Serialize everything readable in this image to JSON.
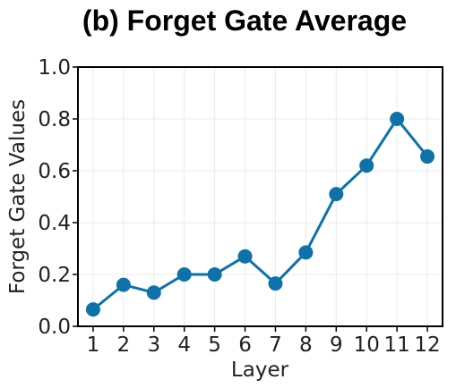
{
  "chart_data": {
    "type": "line",
    "title": "(b) Forget Gate Average",
    "xlabel": "Layer",
    "ylabel": "Forget Gate Values",
    "x": [
      1,
      2,
      3,
      4,
      5,
      6,
      7,
      8,
      9,
      10,
      11,
      12
    ],
    "x_tick_labels": [
      "1",
      "2",
      "3",
      "4",
      "5",
      "6",
      "7",
      "8",
      "9",
      "10",
      "11",
      "12"
    ],
    "y_tick_labels": [
      "0.0",
      "0.2",
      "0.4",
      "0.6",
      "0.8",
      "1.0"
    ],
    "y_ticks": [
      0.0,
      0.2,
      0.4,
      0.6,
      0.8,
      1.0
    ],
    "xlim": [
      0.5,
      12.5
    ],
    "ylim": [
      0.0,
      1.0
    ],
    "grid": true,
    "series": [
      {
        "values": [
          0.065,
          0.16,
          0.13,
          0.2,
          0.2,
          0.27,
          0.165,
          0.285,
          0.51,
          0.62,
          0.8,
          0.655
        ],
        "color": "#0d72aa",
        "marker": "circle"
      }
    ]
  }
}
